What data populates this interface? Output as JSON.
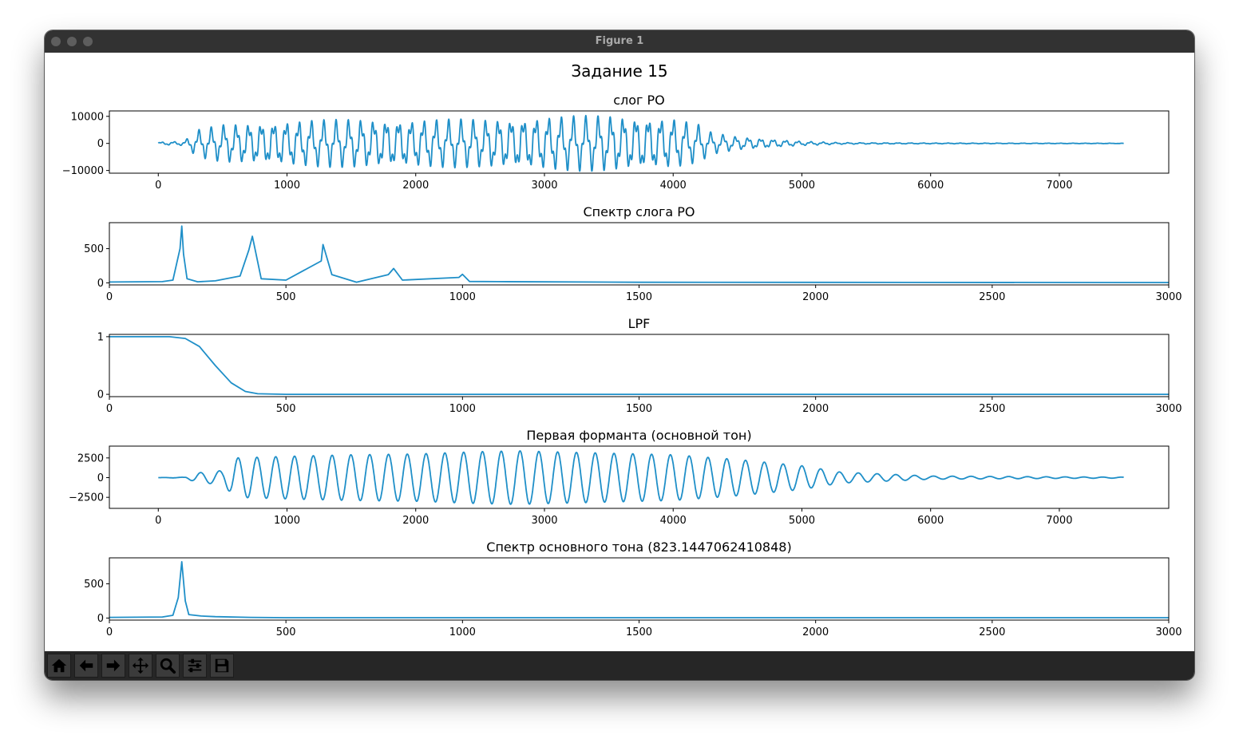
{
  "window": {
    "title": "Figure 1"
  },
  "toolbar": {
    "buttons": [
      {
        "name": "home-button",
        "icon": "home-icon"
      },
      {
        "name": "back-button",
        "icon": "arrow-left-icon"
      },
      {
        "name": "forward-button",
        "icon": "arrow-right-icon"
      },
      {
        "name": "pan-button",
        "icon": "move-icon"
      },
      {
        "name": "zoom-button",
        "icon": "magnifier-icon"
      },
      {
        "name": "configure-subplots-button",
        "icon": "sliders-icon"
      },
      {
        "name": "save-button",
        "icon": "floppy-disk-icon"
      }
    ]
  },
  "figure": {
    "suptitle": "Задание 15",
    "line_color": "#1f8fc8"
  },
  "chart_data": [
    {
      "type": "line",
      "title": "слог РО",
      "xlim": [
        -380,
        7850
      ],
      "ylim": [
        -11000,
        12000
      ],
      "xticks": [
        0,
        1000,
        2000,
        3000,
        4000,
        5000,
        6000,
        7000
      ],
      "xtick_labels": [
        "0",
        "1000",
        "2000",
        "3000",
        "4000",
        "5000",
        "6000",
        "7000"
      ],
      "yticks": [
        10000,
        0,
        -10000
      ],
      "ytick_labels": [
        "10000",
        "0",
        "−10000"
      ],
      "x": [
        0,
        200,
        300,
        500,
        1000,
        1500,
        2000,
        2500,
        3000,
        3500,
        4000,
        4200,
        4300,
        4500,
        4800,
        5000,
        5300,
        6000,
        7000,
        7500
      ],
      "envelope": [
        500,
        800,
        5000,
        7000,
        8500,
        9000,
        9000,
        9000,
        10000,
        10500,
        9500,
        7000,
        4000,
        2500,
        1500,
        800,
        300,
        150,
        100,
        80
      ]
    },
    {
      "type": "line",
      "title": "Спектр слога РО",
      "xlim": [
        0,
        3000
      ],
      "ylim": [
        -30,
        880
      ],
      "xticks": [
        0,
        500,
        1000,
        1500,
        2000,
        2500,
        3000
      ],
      "xtick_labels": [
        "0",
        "500",
        "1000",
        "1500",
        "2000",
        "2500",
        "3000"
      ],
      "yticks": [
        500,
        0
      ],
      "ytick_labels": [
        "500",
        "0"
      ],
      "x": [
        0,
        150,
        180,
        200,
        205,
        210,
        220,
        250,
        300,
        370,
        395,
        405,
        415,
        430,
        500,
        600,
        605,
        630,
        700,
        790,
        805,
        830,
        990,
        1000,
        1020,
        1100,
        1500,
        3000
      ],
      "y": [
        12,
        18,
        40,
        500,
        830,
        420,
        60,
        15,
        30,
        100,
        480,
        680,
        430,
        60,
        40,
        320,
        560,
        120,
        10,
        120,
        210,
        40,
        80,
        125,
        20,
        18,
        8,
        5
      ]
    },
    {
      "type": "line",
      "title": "LPF",
      "xlim": [
        0,
        3000
      ],
      "ylim": [
        -0.04,
        1.04
      ],
      "xticks": [
        0,
        500,
        1000,
        1500,
        2000,
        2500,
        3000
      ],
      "xtick_labels": [
        "0",
        "500",
        "1000",
        "1500",
        "2000",
        "2500",
        "3000"
      ],
      "yticks": [
        1,
        0
      ],
      "ytick_labels": [
        "1",
        "0"
      ],
      "x": [
        0,
        170,
        215,
        255,
        300,
        345,
        385,
        420,
        500,
        1000,
        2000,
        3000
      ],
      "y": [
        1.0,
        1.0,
        0.97,
        0.83,
        0.5,
        0.2,
        0.05,
        0.01,
        0.0,
        0.0,
        0.0,
        0.0
      ]
    },
    {
      "type": "line",
      "title": "Первая форманта (основной тон)",
      "xlim": [
        -380,
        7850
      ],
      "ylim": [
        -3900,
        4000
      ],
      "xticks": [
        0,
        1000,
        2000,
        3000,
        4000,
        5000,
        6000,
        7000
      ],
      "xtick_labels": [
        "0",
        "1000",
        "2000",
        "3000",
        "4000",
        "5000",
        "6000",
        "7000"
      ],
      "yticks": [
        2500,
        0,
        -2500
      ],
      "ytick_labels": [
        "2500",
        "0",
        "−2500"
      ],
      "x": [
        0,
        200,
        300,
        500,
        600,
        1000,
        1500,
        2000,
        2500,
        2800,
        3000,
        3500,
        4000,
        4500,
        5000,
        5300,
        6000,
        7000,
        7500
      ],
      "envelope": [
        0,
        50,
        600,
        900,
        2500,
        2700,
        2900,
        3000,
        3300,
        3400,
        3300,
        3100,
        2900,
        2300,
        1500,
        700,
        200,
        100,
        60
      ]
    },
    {
      "type": "line",
      "title": "Спектр основного тона (823.1447062410848)",
      "xlim": [
        0,
        3000
      ],
      "ylim": [
        -30,
        880
      ],
      "xticks": [
        0,
        500,
        1000,
        1500,
        2000,
        2500,
        3000
      ],
      "xtick_labels": [
        "0",
        "500",
        "1000",
        "1500",
        "2000",
        "2500",
        "3000"
      ],
      "yticks": [
        500,
        0
      ],
      "ytick_labels": [
        "500",
        "0"
      ],
      "x": [
        0,
        150,
        180,
        195,
        205,
        215,
        225,
        260,
        300,
        400,
        500,
        3000
      ],
      "y": [
        10,
        15,
        40,
        300,
        823,
        250,
        50,
        30,
        20,
        10,
        5,
        5
      ]
    }
  ]
}
